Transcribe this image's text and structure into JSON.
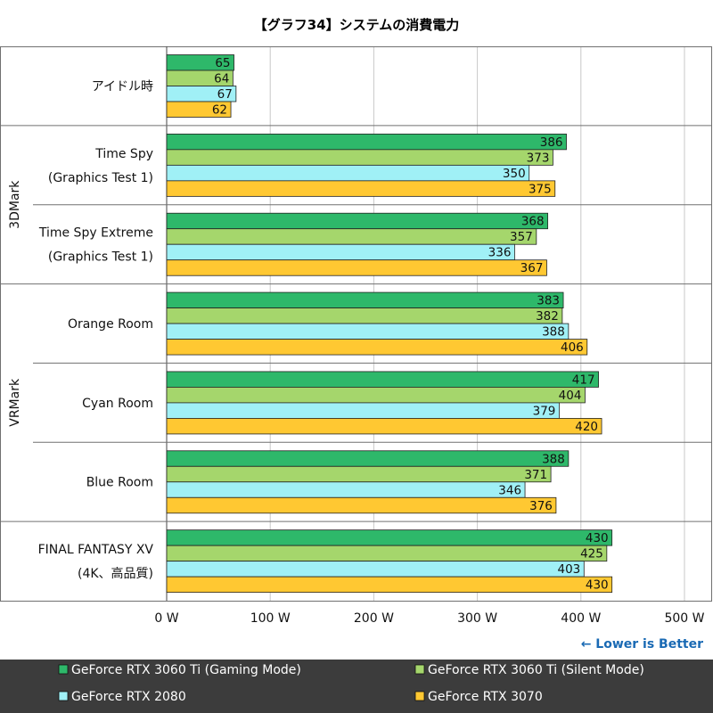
{
  "chart_data": {
    "type": "bar",
    "orientation": "horizontal",
    "title": "【グラフ34】システムの消費電力",
    "note": "← Lower is Better",
    "xlim": [
      0,
      500
    ],
    "xticks": [
      "0 W",
      "100 W",
      "200 W",
      "300 W",
      "400 W",
      "500 W"
    ],
    "grid": true,
    "legend_position": "bottom",
    "groups": [
      {
        "label": "3DMark",
        "categories": [
          "Time Spy (Graphics Test 1)",
          "Time Spy Extreme (Graphics Test 1)"
        ]
      },
      {
        "label": "VRMark",
        "categories": [
          "Orange Room",
          "Cyan Room",
          "Blue Room"
        ]
      }
    ],
    "categories": [
      {
        "name": "アイドル時",
        "lines": [
          "アイドル時"
        ]
      },
      {
        "name": "Time Spy (Graphics Test 1)",
        "lines": [
          "Time Spy",
          "(Graphics Test 1)"
        ]
      },
      {
        "name": "Time Spy Extreme (Graphics Test 1)",
        "lines": [
          "Time Spy Extreme",
          "(Graphics Test 1)"
        ]
      },
      {
        "name": "Orange Room",
        "lines": [
          "Orange Room"
        ]
      },
      {
        "name": "Cyan Room",
        "lines": [
          "Cyan Room"
        ]
      },
      {
        "name": "Blue Room",
        "lines": [
          "Blue Room"
        ]
      },
      {
        "name": "FINAL FANTASY XV (4K、高品質)",
        "lines": [
          "FINAL FANTASY XV",
          "(4K、高品質)"
        ]
      }
    ],
    "series": [
      {
        "name": "GeForce RTX 3060 Ti (Gaming Mode)",
        "color": "#2eb86a",
        "values": [
          65,
          386,
          368,
          383,
          417,
          388,
          430
        ]
      },
      {
        "name": "GeForce RTX 3060 Ti (Silent Mode)",
        "color": "#a5d66c",
        "values": [
          64,
          373,
          357,
          382,
          404,
          371,
          425
        ]
      },
      {
        "name": "GeForce RTX 2080",
        "color": "#a0f0f6",
        "values": [
          67,
          350,
          336,
          388,
          379,
          346,
          403
        ]
      },
      {
        "name": "GeForce RTX 3070",
        "color": "#ffc832",
        "values": [
          62,
          375,
          367,
          406,
          420,
          376,
          430
        ]
      }
    ]
  },
  "colors": {
    "border": "#707070",
    "grid": "#c8c8c8",
    "note": "#1a6ab4",
    "legend_bg": "#3c3c3c"
  }
}
